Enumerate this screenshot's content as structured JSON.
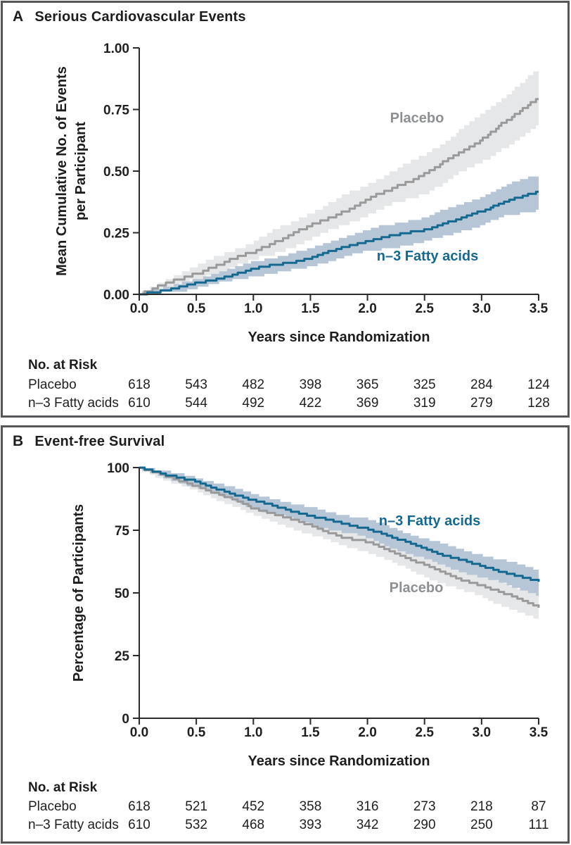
{
  "chart_data": [
    {
      "type": "line",
      "letter": "A",
      "title": "Serious Cardiovascular Events",
      "xlabel": "Years since Randomization",
      "ylabel_lines": [
        "Mean Cumulative No. of Events",
        "per Participant"
      ],
      "xlim": [
        0,
        3.5
      ],
      "ylim": [
        0,
        1.0
      ],
      "x_ticks": [
        "0.0",
        "0.5",
        "1.0",
        "1.5",
        "2.0",
        "2.5",
        "3.0",
        "3.5"
      ],
      "y_ticks": [
        "0.00",
        "0.25",
        "0.50",
        "0.75",
        "1.00"
      ],
      "grid": false,
      "legend_position": "inline-labels",
      "series": [
        {
          "name": "Placebo",
          "line_color": "#9a9a9a",
          "band_color": "#e5e7e9",
          "label_color": "#8d9093",
          "x": [
            0,
            0.25,
            0.5,
            0.75,
            1.0,
            1.25,
            1.5,
            1.75,
            2.0,
            2.25,
            2.5,
            2.75,
            3.0,
            3.25,
            3.5
          ],
          "y": [
            0,
            0.045,
            0.09,
            0.13,
            0.17,
            0.225,
            0.28,
            0.33,
            0.38,
            0.435,
            0.49,
            0.56,
            0.63,
            0.71,
            0.8
          ],
          "band_halfwidth": [
            0.005,
            0.02,
            0.03,
            0.035,
            0.04,
            0.05,
            0.055,
            0.06,
            0.065,
            0.07,
            0.08,
            0.09,
            0.1,
            0.11,
            0.12
          ],
          "quant": 0.012
        },
        {
          "name": "n–3 Fatty acids",
          "line_color": "#15688f",
          "band_color": "#b6c6d7",
          "label_color": "#15688f",
          "x": [
            0,
            0.25,
            0.5,
            0.75,
            1.0,
            1.25,
            1.5,
            1.75,
            2.0,
            2.25,
            2.5,
            2.75,
            3.0,
            3.25,
            3.5
          ],
          "y": [
            0,
            0.02,
            0.045,
            0.07,
            0.1,
            0.125,
            0.15,
            0.185,
            0.215,
            0.24,
            0.265,
            0.3,
            0.335,
            0.385,
            0.415
          ],
          "band_halfwidth": [
            0.004,
            0.012,
            0.02,
            0.025,
            0.03,
            0.034,
            0.038,
            0.042,
            0.045,
            0.048,
            0.052,
            0.056,
            0.06,
            0.065,
            0.072
          ],
          "quant": 0.008
        }
      ],
      "risk_table": {
        "header": "No. at Risk",
        "rows": [
          {
            "label": "Placebo",
            "values": [
              "618",
              "543",
              "482",
              "398",
              "365",
              "325",
              "284",
              "124"
            ]
          },
          {
            "label": "n–3 Fatty acids",
            "values": [
              "610",
              "544",
              "492",
              "422",
              "369",
              "319",
              "279",
              "128"
            ]
          }
        ]
      }
    },
    {
      "type": "line",
      "letter": "B",
      "title": "Event-free Survival",
      "xlabel": "Years since Randomization",
      "ylabel_lines": [
        "Percentage of Participants"
      ],
      "xlim": [
        0,
        3.5
      ],
      "ylim": [
        0,
        100
      ],
      "x_ticks": [
        "0.0",
        "0.5",
        "1.0",
        "1.5",
        "2.0",
        "2.5",
        "3.0",
        "3.5"
      ],
      "y_ticks": [
        "0",
        "25",
        "50",
        "75",
        "100"
      ],
      "grid": false,
      "legend_position": "inline-labels",
      "series": [
        {
          "name": "Placebo",
          "line_color": "#9a9a9a",
          "band_color": "#e5e7e9",
          "label_color": "#8d9093",
          "x": [
            0,
            0.25,
            0.5,
            0.75,
            1.0,
            1.25,
            1.5,
            1.75,
            2.0,
            2.25,
            2.5,
            2.75,
            3.0,
            3.25,
            3.5
          ],
          "y": [
            100,
            96.2,
            93,
            88.5,
            83.5,
            80.5,
            77,
            73,
            70,
            65.5,
            61.5,
            56.5,
            53,
            48.5,
            44.5
          ],
          "band_halfwidth": [
            0.3,
            1.2,
            1.8,
            2.2,
            2.6,
            2.9,
            3.2,
            3.4,
            3.6,
            3.8,
            4.0,
            4.2,
            4.4,
            4.6,
            4.8
          ],
          "quant": 0.9
        },
        {
          "name": "n–3 Fatty acids",
          "line_color": "#15688f",
          "band_color": "#b6c6d7",
          "label_color": "#15688f",
          "x": [
            0,
            0.25,
            0.5,
            0.75,
            1.0,
            1.25,
            1.5,
            1.75,
            2.0,
            2.25,
            2.5,
            2.75,
            3.0,
            3.25,
            3.5
          ],
          "y": [
            100,
            97.2,
            94.5,
            90.5,
            86.5,
            84,
            81,
            78,
            75.5,
            71.5,
            68,
            64,
            60.5,
            57.5,
            54.5
          ],
          "band_halfwidth": [
            0.3,
            1.2,
            1.8,
            2.2,
            2.6,
            2.9,
            3.2,
            3.4,
            3.6,
            3.8,
            4.0,
            4.2,
            4.4,
            4.6,
            4.8
          ],
          "quant": 0.8
        }
      ],
      "risk_table": {
        "header": "No. at Risk",
        "rows": [
          {
            "label": "Placebo",
            "values": [
              "618",
              "521",
              "452",
              "358",
              "316",
              "273",
              "218",
              "87"
            ]
          },
          {
            "label": "n–3 Fatty acids",
            "values": [
              "610",
              "532",
              "468",
              "393",
              "342",
              "290",
              "250",
              "111"
            ]
          }
        ]
      }
    }
  ],
  "colors": {
    "n3_line": "#15688f",
    "n3_band": "#b6c6d7",
    "placebo_line": "#9a9a9a",
    "placebo_band": "#e5e7e9",
    "panel_border": "#54565a",
    "axis_text": "#1f1f1f"
  }
}
